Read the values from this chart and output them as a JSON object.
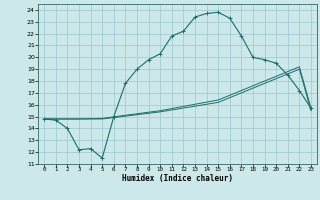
{
  "title": "",
  "xlabel": "Humidex (Indice chaleur)",
  "bg_color": "#cce8ea",
  "grid_color": "#9cc8cc",
  "line_color": "#1a6e6a",
  "xlim": [
    -0.5,
    23.5
  ],
  "ylim": [
    11,
    24.5
  ],
  "xticks": [
    0,
    1,
    2,
    3,
    4,
    5,
    6,
    7,
    8,
    9,
    10,
    11,
    12,
    13,
    14,
    15,
    16,
    17,
    18,
    19,
    20,
    21,
    22,
    23
  ],
  "yticks": [
    11,
    12,
    13,
    14,
    15,
    16,
    17,
    18,
    19,
    20,
    21,
    22,
    23,
    24
  ],
  "curve1_x": [
    0,
    1,
    2,
    3,
    4,
    5,
    6,
    7,
    8,
    9,
    10,
    11,
    12,
    13,
    14,
    15,
    16,
    17,
    18,
    19,
    20,
    21,
    22,
    23
  ],
  "curve1_y": [
    14.8,
    14.7,
    14.0,
    12.2,
    12.3,
    11.5,
    15.0,
    17.8,
    19.0,
    19.8,
    20.3,
    21.8,
    22.2,
    23.4,
    23.7,
    23.8,
    23.3,
    21.8,
    20.0,
    19.8,
    19.5,
    18.5,
    17.2,
    15.7
  ],
  "curve2_x": [
    0,
    1,
    2,
    3,
    5,
    10,
    15,
    20,
    22,
    23
  ],
  "curve2_y": [
    14.8,
    14.8,
    14.8,
    14.8,
    14.8,
    15.4,
    16.2,
    18.2,
    19.0,
    15.5
  ],
  "curve3_x": [
    0,
    1,
    2,
    3,
    5,
    10,
    15,
    20,
    22,
    23
  ],
  "curve3_y": [
    14.8,
    14.8,
    14.8,
    14.8,
    14.85,
    15.5,
    16.4,
    18.4,
    19.2,
    15.7
  ]
}
